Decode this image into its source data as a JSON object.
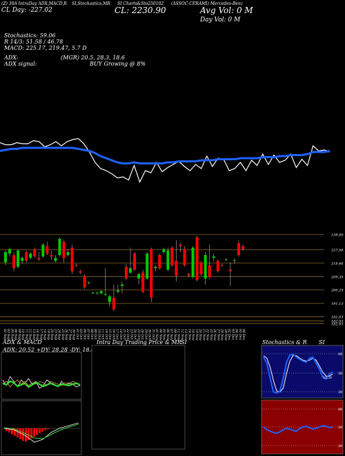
{
  "header": {
    "line1_a": "(Z) 30A IntraDay ADX,MACD,R",
    "line1_b": "SI,Stochastics,MR",
    "line1_c": "SI Charts&Sto250102",
    "line1_d": "(ASSOC-CERAMI) Mercedes-Benz",
    "cl_label": "CL: 2230.90",
    "avg_vol": "Avg Vol: 0   M",
    "day_vol": "Day Vol: 0   M",
    "cl_day": "CL  Day: -227.02",
    "stoch": "Stochastics: 59.06",
    "r_line": "R   14/3: 51.58 / 46.78",
    "macd": "MACD: 225.17, 219.47, 5.7 D",
    "adx": "ADX:",
    "mgr": "(MGR) 20.5,  28.3,  18.6",
    "adx_signal": "ADX   signal:",
    "buy": "BUY Growing @ 8%"
  },
  "price_axis": [
    "238.00",
    "227.56",
    "218.46",
    "209.35",
    "200.25",
    "191.13",
    "182.03",
    "182.03",
    "182.93"
  ],
  "dates": [
    "02 Sep",
    "03 Sep",
    "05 Sep",
    "06 Sep",
    "09 Sep",
    "10 Sep",
    "11 Sep",
    "12 Sep",
    "13 Sep",
    "16 Sep",
    "17 Sep",
    "18 Sep",
    "19 Sep",
    "20 Sep",
    "23 Sep",
    "24 Sep",
    "25 Sep",
    "26 Sep",
    "27 Sep",
    "30 Sep",
    "01 Oct",
    "03 Oct",
    "04 Oct",
    "07 Oct",
    "08 Oct",
    "09 Oct",
    "10 Oct",
    "11 Oct",
    "14 Oct",
    "15 Oct",
    "16 Oct",
    "17 Oct",
    "18 Oct",
    "21 Oct",
    "22 Oct",
    "23 Oct",
    "24 Oct",
    "25 Oct",
    "28 Oct",
    "29 Oct",
    "30 Oct",
    "31 Oct",
    "01 Nov",
    "04 Nov",
    "05 Nov",
    "06 Nov",
    "07 Nov",
    "08 Nov",
    "11 Nov",
    "12 Nov",
    "13 Nov",
    "14 Nov",
    "18 Nov",
    "19 Nov",
    "20 Nov",
    "21 Nov",
    "22 Nov",
    "25 Nov",
    "26 Nov",
    "27 Nov",
    "28 Nov",
    "29 Nov",
    "02 Dec",
    "03 Dec",
    "04 Dec",
    "05 Dec",
    "06 Dec"
  ],
  "panels": {
    "adx": {
      "title": "ADX  & MACD",
      "readout": "ADX: 20.52  +DY: 28.28  -DY: 18.65"
    },
    "intraday": {
      "title_a": "Intra  Day Trading Price  & MR",
      "title_b": "SI"
    },
    "stoch": {
      "title_a": "Stochastics & R",
      "title_b": "SI",
      "levels": [
        "80",
        "50",
        "20"
      ],
      "rsi_levels": [
        "80",
        "50",
        "20"
      ],
      "cur_label": "51.58"
    }
  },
  "colors": {
    "up": "#00cc00",
    "down": "#ff0000",
    "ma": "#1e63ff",
    "grid": "#8b6a2a",
    "stoch_bg": "#0a0a6a",
    "rsi_bg": "#8b0000"
  },
  "chart_data": {
    "type": "candlestick",
    "ylim": [
      179,
      240
    ],
    "candles": [
      {
        "o": 219.0,
        "h": 227.0,
        "l": 217.0,
        "c": 226.0
      },
      {
        "o": 225.0,
        "h": 229.0,
        "l": 223.0,
        "c": 228.0
      },
      {
        "o": 224.0,
        "h": 226.0,
        "l": 213.0,
        "c": 215.0
      },
      {
        "o": 216.0,
        "h": 228.0,
        "l": 215.0,
        "c": 227.0
      },
      {
        "o": 220.0,
        "h": 223.0,
        "l": 218.0,
        "c": 222.0
      },
      {
        "o": 226.0,
        "h": 227.0,
        "l": 219.0,
        "c": 220.0
      },
      {
        "o": 222.0,
        "h": 226.0,
        "l": 221.0,
        "c": 225.0
      },
      {
        "o": 228.0,
        "h": 229.0,
        "l": 222.0,
        "c": 223.0
      },
      {
        "o": 222.0,
        "h": 226.0,
        "l": 220.0,
        "c": 221.0
      },
      {
        "o": 223.0,
        "h": 232.0,
        "l": 222.0,
        "c": 231.0
      },
      {
        "o": 230.0,
        "h": 233.0,
        "l": 224.0,
        "c": 225.0
      },
      {
        "o": 224.0,
        "h": 227.0,
        "l": 221.0,
        "c": 223.0
      },
      {
        "o": 220.0,
        "h": 224.0,
        "l": 219.0,
        "c": 222.0
      },
      {
        "o": 224.0,
        "h": 236.0,
        "l": 223.0,
        "c": 235.0
      },
      {
        "o": 233.0,
        "h": 234.0,
        "l": 219.0,
        "c": 222.0
      },
      {
        "o": 224.0,
        "h": 228.0,
        "l": 223.0,
        "c": 226.0
      },
      {
        "o": 229.0,
        "h": 231.0,
        "l": 211.0,
        "c": 213.0
      },
      {
        "o": 217.0,
        "h": 218.0,
        "l": 216.0,
        "c": 216.5
      },
      {
        "o": 213.0,
        "h": 214.0,
        "l": 211.0,
        "c": 212.0
      },
      {
        "o": 210.0,
        "h": 211.0,
        "l": 201.0,
        "c": 202.0
      },
      {
        "o": 205.0,
        "h": 206.0,
        "l": 204.0,
        "c": 205.5
      },
      {
        "o": 198.0,
        "h": 199.0,
        "l": 197.5,
        "c": 198.5
      },
      {
        "o": 198.0,
        "h": 199.0,
        "l": 197.0,
        "c": 198.5
      },
      {
        "o": 198.0,
        "h": 200.0,
        "l": 197.0,
        "c": 199.5
      },
      {
        "o": 197.0,
        "h": 215.0,
        "l": 196.0,
        "c": 197.5
      },
      {
        "o": 192.0,
        "h": 197.0,
        "l": 189.0,
        "c": 196.0
      },
      {
        "o": 195.0,
        "h": 204.0,
        "l": 186.0,
        "c": 187.0
      },
      {
        "o": 199.0,
        "h": 204.0,
        "l": 198.0,
        "c": 200.0
      },
      {
        "o": 203.0,
        "h": 206.0,
        "l": 198.0,
        "c": 204.0
      },
      {
        "o": 216.0,
        "h": 218.0,
        "l": 207.0,
        "c": 208.0
      },
      {
        "o": 212.0,
        "h": 229.0,
        "l": 211.0,
        "c": 215.0
      },
      {
        "o": 225.0,
        "h": 226.0,
        "l": 213.0,
        "c": 214.0
      },
      {
        "o": 208.0,
        "h": 212.0,
        "l": 204.0,
        "c": 211.0
      },
      {
        "o": 212.0,
        "h": 214.0,
        "l": 198.0,
        "c": 199.0
      },
      {
        "o": 208.0,
        "h": 226.0,
        "l": 207.0,
        "c": 225.0
      },
      {
        "o": 228.0,
        "h": 229.0,
        "l": 192.0,
        "c": 195.0
      },
      {
        "o": 215.0,
        "h": 217.0,
        "l": 213.0,
        "c": 216.0
      },
      {
        "o": 224.0,
        "h": 225.0,
        "l": 214.0,
        "c": 215.0
      },
      {
        "o": 226.0,
        "h": 229.0,
        "l": 225.0,
        "c": 228.0
      },
      {
        "o": 214.0,
        "h": 229.0,
        "l": 213.0,
        "c": 227.0
      },
      {
        "o": 229.0,
        "h": 230.0,
        "l": 216.0,
        "c": 217.0
      },
      {
        "o": 220.0,
        "h": 234.0,
        "l": 206.0,
        "c": 210.0
      },
      {
        "o": 231.0,
        "h": 232.0,
        "l": 226.0,
        "c": 230.0
      },
      {
        "o": 228.0,
        "h": 230.0,
        "l": 216.0,
        "c": 217.0
      },
      {
        "o": 211.0,
        "h": 212.0,
        "l": 209.0,
        "c": 210.0
      },
      {
        "o": 209.0,
        "h": 230.0,
        "l": 208.0,
        "c": 229.0
      },
      {
        "o": 236.0,
        "h": 237.0,
        "l": 206.0,
        "c": 207.0
      },
      {
        "o": 219.0,
        "h": 220.0,
        "l": 210.0,
        "c": 211.0
      },
      {
        "o": 208.0,
        "h": 226.0,
        "l": 204.0,
        "c": 224.0
      },
      {
        "o": 217.0,
        "h": 231.0,
        "l": 208.0,
        "c": 209.0
      },
      {
        "o": 222.0,
        "h": 225.0,
        "l": 220.0,
        "c": 223.0
      },
      {
        "o": 220.0,
        "h": 221.0,
        "l": 212.0,
        "c": 213.0
      },
      {
        "o": 217.0,
        "h": 218.0,
        "l": 216.0,
        "c": 216.5
      },
      {
        "o": 221.0,
        "h": 222.0,
        "l": 220.0,
        "c": 221.0
      },
      {
        "o": 214.0,
        "h": 219.0,
        "l": 203.0,
        "c": 213.0
      },
      {
        "o": 220.0,
        "h": 222.0,
        "l": 218.0,
        "c": 220.5
      },
      {
        "o": 232.0,
        "h": 234.0,
        "l": 223.0,
        "c": 224.0
      },
      {
        "o": 230.0,
        "h": 231.0,
        "l": 227.0,
        "c": 228.0
      }
    ],
    "price_line": [
      71,
      73,
      73,
      71,
      72,
      72,
      69,
      70,
      75,
      73,
      70,
      74,
      70,
      68,
      67,
      72,
      80,
      90,
      96,
      98,
      101,
      105,
      104,
      107,
      93,
      109,
      98,
      100,
      90,
      99,
      95,
      92,
      89,
      94,
      98,
      92,
      96,
      84,
      94,
      86,
      87,
      98,
      96,
      90,
      98,
      88,
      93,
      82,
      92,
      83,
      90,
      88,
      82,
      95,
      87,
      93,
      74,
      79,
      78,
      80
    ],
    "ma_line": [
      79,
      78,
      77,
      77,
      76,
      76,
      76,
      76,
      76,
      76,
      76,
      76,
      76,
      76,
      77,
      78,
      79,
      81,
      84,
      86,
      88,
      90,
      91,
      91,
      90,
      91,
      91,
      91,
      91,
      91,
      90,
      90,
      89,
      89,
      89,
      89,
      88,
      88,
      88,
      87,
      87,
      87,
      87,
      86,
      86,
      86,
      86,
      85,
      85,
      85,
      84,
      84,
      83,
      83,
      83,
      82,
      80,
      80,
      80,
      79
    ],
    "stoch_k": [
      82,
      70,
      40,
      12,
      10,
      14,
      40,
      72,
      86,
      88,
      82,
      78,
      74,
      72,
      80,
      82,
      70,
      58,
      42,
      38,
      48,
      52
    ],
    "stoch_d": [
      85,
      80,
      62,
      35,
      14,
      12,
      20,
      50,
      74,
      86,
      85,
      80,
      76,
      74,
      76,
      80,
      76,
      64,
      52,
      44,
      44,
      48
    ],
    "rsi": [
      52,
      48,
      46,
      44,
      43,
      45,
      48,
      50,
      49,
      47,
      46,
      50,
      52,
      53,
      51,
      49,
      50,
      52,
      54,
      53,
      51,
      52
    ],
    "adx_green": [
      62,
      60,
      65,
      63,
      58,
      60,
      62,
      57,
      60,
      63,
      61,
      58,
      60,
      62,
      60,
      58,
      61,
      60,
      59,
      61,
      62,
      60
    ],
    "adx_white": [
      50,
      42,
      55,
      48,
      40,
      50,
      45,
      52,
      44,
      48,
      38,
      42,
      50,
      46,
      44,
      40,
      48,
      42,
      46,
      44,
      40,
      42
    ],
    "adx_orange": [
      45,
      48,
      40,
      46,
      50,
      44,
      48,
      42,
      46,
      44,
      48,
      46,
      42,
      48,
      46,
      44,
      42,
      46,
      44,
      48,
      46,
      44
    ],
    "macd_hist": [
      -6,
      -10,
      -14,
      -18,
      -22,
      -26,
      -30,
      -32,
      -28,
      -24,
      -20,
      -16,
      -12,
      -8,
      -4,
      -2
    ]
  }
}
